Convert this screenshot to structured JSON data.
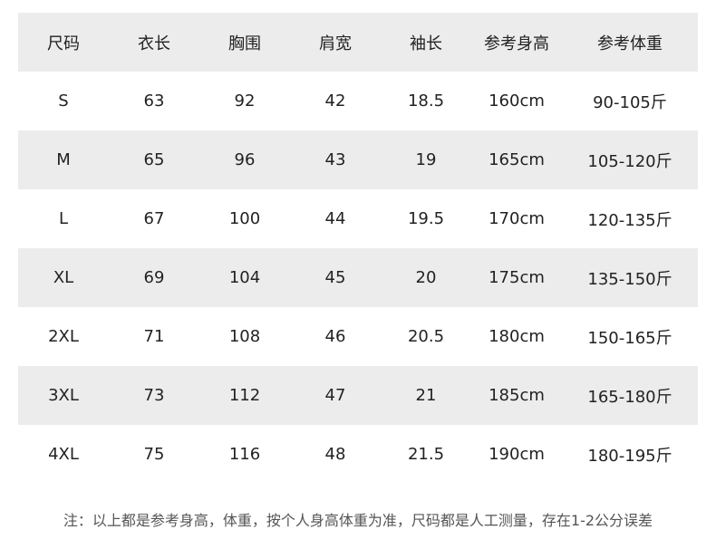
{
  "table": {
    "headers": [
      "尺码",
      "衣长",
      "胸围",
      "肩宽",
      "袖长",
      "参考身高",
      "参考体重"
    ],
    "rows": [
      [
        "S",
        "63",
        "92",
        "42",
        "18.5",
        "160cm",
        "90-105斤"
      ],
      [
        "M",
        "65",
        "96",
        "43",
        "19",
        "165cm",
        "105-120斤"
      ],
      [
        "L",
        "67",
        "100",
        "44",
        "19.5",
        "170cm",
        "120-135斤"
      ],
      [
        "XL",
        "69",
        "104",
        "45",
        "20",
        "175cm",
        "135-150斤"
      ],
      [
        "2XL",
        "71",
        "108",
        "46",
        "20.5",
        "180cm",
        "150-165斤"
      ],
      [
        "3XL",
        "73",
        "112",
        "47",
        "21",
        "185cm",
        "165-180斤"
      ],
      [
        "4XL",
        "75",
        "116",
        "48",
        "21.5",
        "190cm",
        "180-195斤"
      ]
    ]
  },
  "note": "注：以上都是参考身高，体重，按个人身高体重为准，尺码都是人工测量，存在1-2公分误差",
  "colors": {
    "stripe": "#ececec",
    "text": "#222222",
    "note": "#555555"
  }
}
